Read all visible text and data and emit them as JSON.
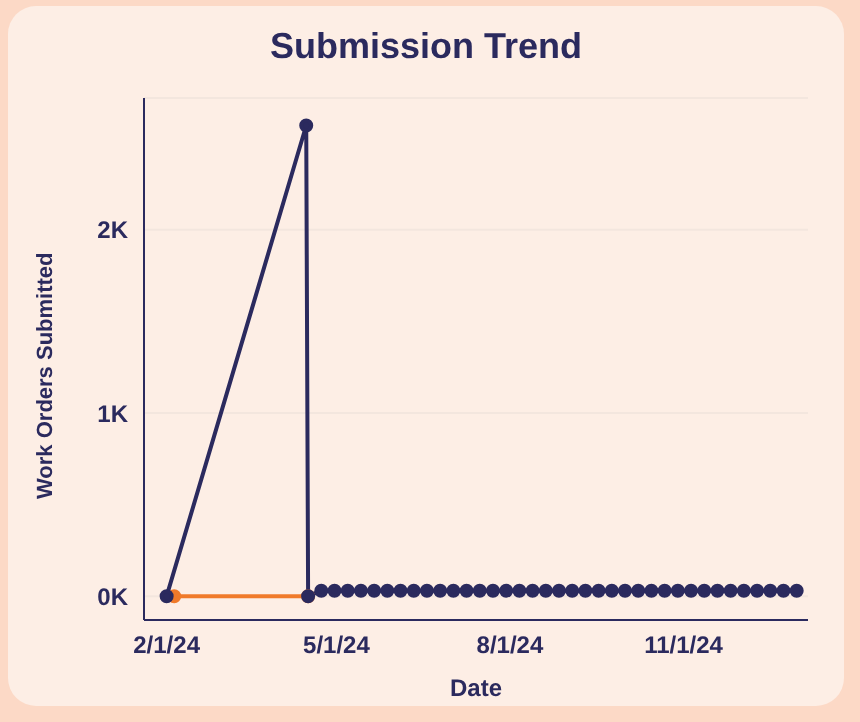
{
  "chart_data": {
    "type": "line",
    "title": "Submission Trend",
    "xlabel": "Date",
    "ylabel": "Work Orders Submitted",
    "xlim": [
      "2024-01-20",
      "2025-01-06"
    ],
    "xticks": [
      {
        "value": "2024-02-01",
        "label": "2/1/24"
      },
      {
        "value": "2024-05-01",
        "label": "5/1/24"
      },
      {
        "value": "2024-08-01",
        "label": "8/1/24"
      },
      {
        "value": "2024-11-01",
        "label": "11/1/24"
      }
    ],
    "ylim": [
      -130,
      2720
    ],
    "yticks": [
      {
        "value": 0,
        "label": "0K"
      },
      {
        "value": 1000,
        "label": "1K"
      },
      {
        "value": 2000,
        "label": "2K"
      }
    ],
    "grid": "y",
    "legend": false,
    "marker": "circle",
    "line_style": "solid",
    "series": [
      {
        "color": "#f07a2a",
        "x": [
          "2024-02-05",
          "2024-04-16"
        ],
        "values": [
          0,
          0
        ]
      },
      {
        "color": "#2b2a5e",
        "x": [
          "2024-02-01",
          "2024-04-15",
          "2024-04-16",
          "2024-04-23",
          "2024-04-30",
          "2024-05-07",
          "2024-05-14",
          "2024-05-21",
          "2024-05-28",
          "2024-06-04",
          "2024-06-11",
          "2024-06-18",
          "2024-06-25",
          "2024-07-02",
          "2024-07-09",
          "2024-07-16",
          "2024-07-23",
          "2024-07-30",
          "2024-08-06",
          "2024-08-13",
          "2024-08-20",
          "2024-08-27",
          "2024-09-03",
          "2024-09-10",
          "2024-09-17",
          "2024-09-24",
          "2024-10-01",
          "2024-10-08",
          "2024-10-15",
          "2024-10-22",
          "2024-10-29",
          "2024-11-05",
          "2024-11-12",
          "2024-11-19",
          "2024-11-26",
          "2024-12-03",
          "2024-12-10",
          "2024-12-17",
          "2024-12-24",
          "2024-12-31"
        ],
        "values": [
          0,
          2570,
          0,
          30,
          30,
          30,
          30,
          30,
          30,
          30,
          30,
          30,
          30,
          30,
          30,
          30,
          30,
          30,
          30,
          30,
          30,
          30,
          30,
          30,
          30,
          30,
          30,
          30,
          30,
          30,
          30,
          30,
          30,
          30,
          30,
          30,
          30,
          30,
          30,
          30
        ]
      }
    ]
  }
}
